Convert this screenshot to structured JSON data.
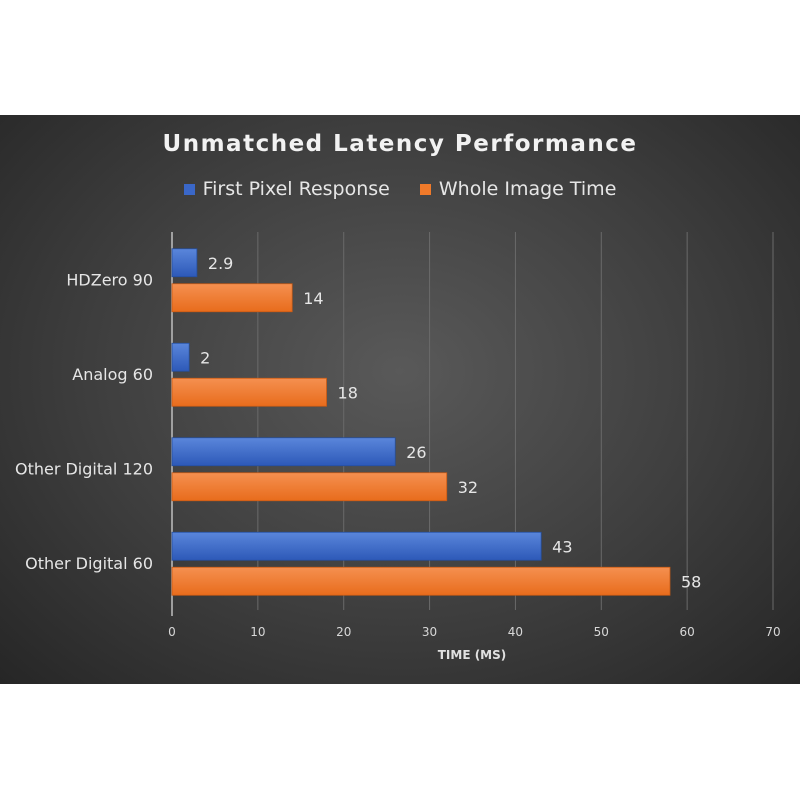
{
  "chart_data": {
    "type": "bar",
    "orientation": "horizontal",
    "title": "Unmatched Latency Performance",
    "xlabel": "TIME (MS)",
    "ylabel": "",
    "xlim": [
      0,
      70
    ],
    "xticks": [
      0,
      10,
      20,
      30,
      40,
      50,
      60,
      70
    ],
    "grid": true,
    "legend_position": "top",
    "categories": [
      "HDZero 90",
      "Analog 60",
      "Other Digital 120",
      "Other Digital 60"
    ],
    "series": [
      {
        "name": "First Pixel Response",
        "color": "#3a67c8",
        "values": [
          2.9,
          2,
          26,
          43
        ]
      },
      {
        "name": "Whole Image Time",
        "color": "#f07a2a",
        "values": [
          14,
          18,
          32,
          58
        ]
      }
    ]
  }
}
